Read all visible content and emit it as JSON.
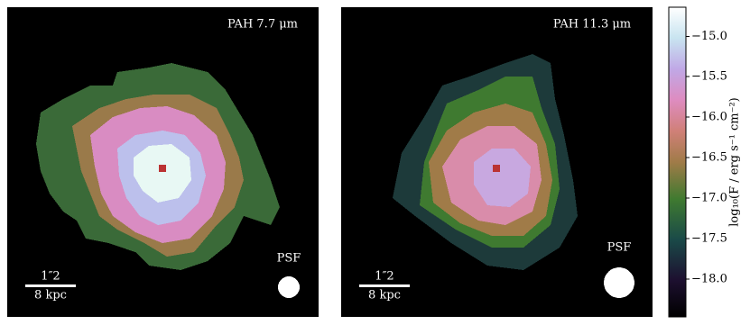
{
  "chart_data": {
    "type": "heatmap",
    "panels": [
      {
        "title": "PAH 7.7 μm",
        "psf_label": "PSF",
        "scale_angle": "1″2",
        "scale_distance": "8 kpc"
      },
      {
        "title": "PAH 11.3 μm",
        "psf_label": "PSF",
        "scale_angle": "1″2",
        "scale_distance": "8 kpc"
      }
    ],
    "colorbar_label": "log₁₀(F / erg s⁻¹ cm⁻²)",
    "ylim": [
      -18.47,
      -14.64
    ],
    "yticks": [
      {
        "value": -18.0,
        "label": "−18.0"
      },
      {
        "value": -17.5,
        "label": "−17.5"
      },
      {
        "value": -17.0,
        "label": "−17.0"
      },
      {
        "value": -16.5,
        "label": "−16.5"
      },
      {
        "value": -16.0,
        "label": "−16.0"
      },
      {
        "value": -15.5,
        "label": "−15.5"
      },
      {
        "value": -15.0,
        "label": "−15.0"
      }
    ]
  }
}
